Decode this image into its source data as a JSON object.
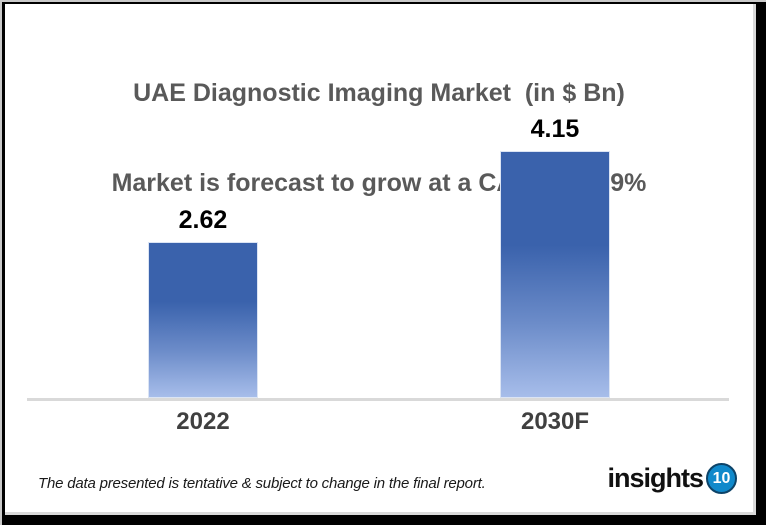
{
  "chart_data": {
    "type": "bar",
    "title": "UAE Diagnostic Imaging Market  (in $ Bn)",
    "subtitle": "Market is forecast to grow at a CAGR of 5.9%",
    "categories": [
      "2022",
      "2030F"
    ],
    "values": [
      2.62,
      4.15
    ],
    "value_labels": [
      "2.62",
      "4.15"
    ],
    "ylabel": "",
    "xlabel": "",
    "ylim": [
      0,
      4.6
    ],
    "grid": false,
    "legend": false,
    "bar_gradient_top": "#3a62ac",
    "bar_gradient_bottom": "#a7bdea",
    "axis_line_color": "#d9d9d9",
    "title_color": "#595959",
    "value_label_color": "#000000",
    "category_label_color": "#404040"
  },
  "footer": {
    "note": "The data presented is tentative & subject to change in the final report.",
    "logo_text": "insights",
    "logo_badge": "10",
    "logo_badge_color": "#1089cb"
  }
}
